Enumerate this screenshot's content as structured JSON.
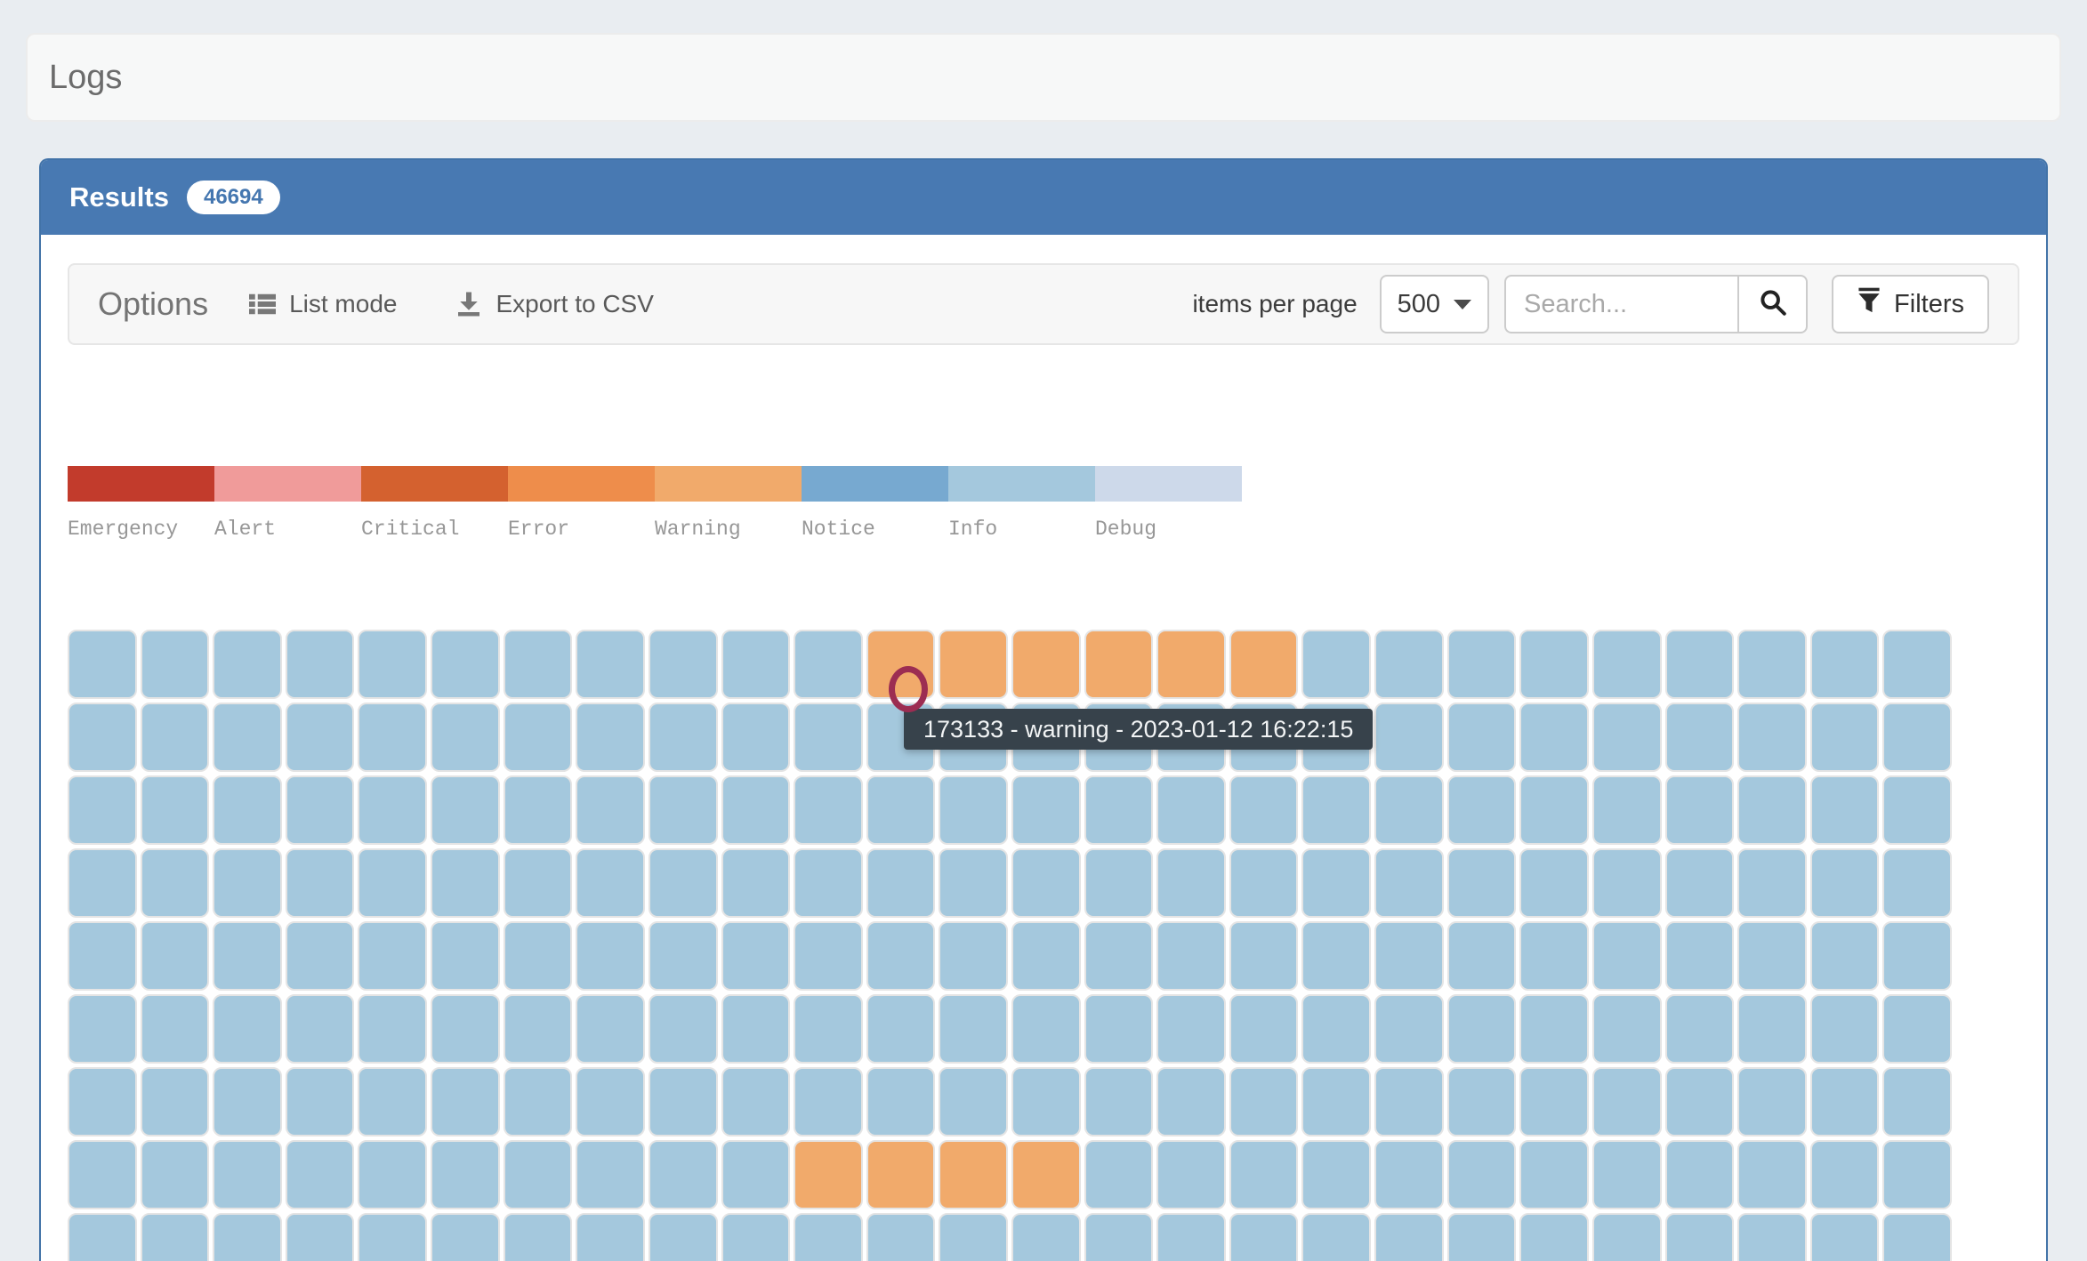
{
  "page": {
    "title": "Logs"
  },
  "results_panel": {
    "title": "Results",
    "count_badge": "46694"
  },
  "options_bar": {
    "title": "Options",
    "list_mode_label": "List mode",
    "export_csv_label": "Export to CSV",
    "items_per_page_label": "items per page",
    "items_per_page_value": "500",
    "search_placeholder": "Search...",
    "search_value": "",
    "filters_label": "Filters"
  },
  "legend": {
    "items": [
      {
        "label": "Emergency",
        "color": "#c23b2c"
      },
      {
        "label": "Alert",
        "color": "#f09b9a"
      },
      {
        "label": "Critical",
        "color": "#d4612f"
      },
      {
        "label": "Error",
        "color": "#ee8d4b"
      },
      {
        "label": "Warning",
        "color": "#f1aa6b"
      },
      {
        "label": "Notice",
        "color": "#77a9d0"
      },
      {
        "label": "Info",
        "color": "#a4c8dd"
      },
      {
        "label": "Debug",
        "color": "#cdd9ea"
      }
    ]
  },
  "grid": {
    "columns": 26,
    "rows": 9,
    "default_level": "info",
    "default_color": "#a4c8dd",
    "warning_level": "warning",
    "warning_color": "#f1aa6b",
    "warning_cells": [
      [
        0,
        11
      ],
      [
        0,
        12
      ],
      [
        0,
        13
      ],
      [
        0,
        14
      ],
      [
        0,
        15
      ],
      [
        0,
        16
      ],
      [
        7,
        10
      ],
      [
        7,
        11
      ],
      [
        7,
        12
      ],
      [
        7,
        13
      ]
    ]
  },
  "tooltip": {
    "text": "173133 - warning - 2023-01-12 16:22:15"
  },
  "colors": {
    "page_background": "#e9edf1",
    "panel_header_bg": "#4879b2",
    "panel_border": "#4273a8",
    "badge_text": "#4577b0",
    "tooltip_bg": "#37424b",
    "cursor_ring": "#9c2d52"
  }
}
